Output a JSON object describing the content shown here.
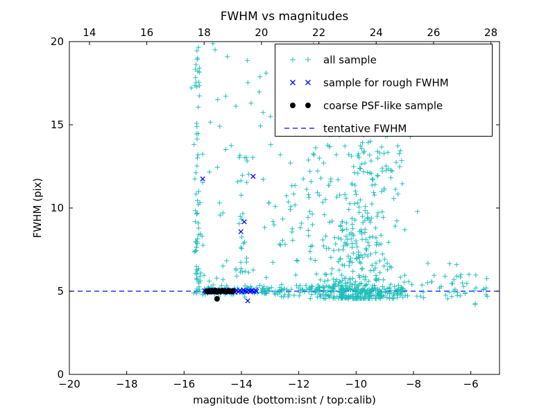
{
  "figure": {
    "background": "#ffffff"
  },
  "chart_data": {
    "type": "scatter",
    "title": "FWHM vs magnitudes",
    "xlabel": "magnitude (bottom:isnt / top:calib)",
    "ylabel": "FWHM (pix)",
    "grid": false,
    "legend_position": "upper right",
    "x_axis_bottom": {
      "lim": [
        -20,
        -5
      ],
      "ticks": [
        -20,
        -18,
        -16,
        -14,
        -12,
        -10,
        -8,
        -6
      ]
    },
    "x_axis_top": {
      "lim": [
        13.3,
        28.3
      ],
      "ticks": [
        14,
        16,
        18,
        20,
        22,
        24,
        26,
        28
      ]
    },
    "y_axis": {
      "lim": [
        0,
        20
      ],
      "ticks": [
        0,
        5,
        10,
        15,
        20
      ]
    },
    "tentative_fwhm": 5.0,
    "series": [
      {
        "name": "all sample",
        "marker": "+",
        "color": "#1fbfba",
        "clusters": [
          {
            "n": 80,
            "x": {
              "d": "gauss",
              "m": -15.52,
              "s": 0.07
            },
            "y": {
              "d": "pow",
              "min": 4.8,
              "max": 21,
              "k": 1.5
            }
          },
          {
            "n": 26,
            "x": {
              "d": "gauss",
              "m": -13.97,
              "s": 0.1
            },
            "y": {
              "d": "pow",
              "min": 5.0,
              "max": 13.5,
              "k": 1.7
            }
          },
          {
            "n": 75,
            "x": {
              "d": "uni",
              "min": -15.45,
              "max": -12.1
            },
            "y": {
              "d": "pow",
              "min": 5.1,
              "max": 20,
              "k": 1.6
            }
          },
          {
            "n": 40,
            "x": {
              "d": "uni",
              "min": -12.3,
              "max": -10.9
            },
            "y": {
              "d": "pow",
              "min": 5.2,
              "max": 14,
              "k": 1.7
            }
          },
          {
            "n": 430,
            "x": {
              "d": "gauss",
              "m": -9.95,
              "s": 0.75
            },
            "y": {
              "d": "pow",
              "min": 4.55,
              "max": 14.5,
              "k": 2.4
            }
          },
          {
            "n": 240,
            "x": {
              "d": "uni",
              "min": -15.35,
              "max": -8.3
            },
            "y": {
              "d": "gauss",
              "m": 5.02,
              "s": 0.16
            }
          },
          {
            "n": 48,
            "x": {
              "d": "uni",
              "min": -8.4,
              "max": -5.4
            },
            "y": {
              "d": "gauss",
              "m": 5.15,
              "s": 0.5
            }
          },
          {
            "n": 14,
            "x": {
              "d": "uni",
              "min": -12.6,
              "max": -9.6
            },
            "y": {
              "d": "uni",
              "min": 16,
              "max": 20
            }
          },
          {
            "n": 8,
            "x": {
              "d": "gauss",
              "m": -10.3,
              "s": 0.6
            },
            "y": {
              "d": "uni",
              "min": 13.5,
              "max": 16
            }
          }
        ],
        "extra_points": [
          [
            -5.85,
            4.2
          ],
          [
            -6.5,
            6.6
          ],
          [
            -6.9,
            5.9
          ]
        ]
      },
      {
        "name": "sample for rough FWHM",
        "marker": "x",
        "color": "#0000ff",
        "points": [
          [
            -15.35,
            11.75
          ],
          [
            -13.59,
            11.9
          ],
          [
            -13.9,
            9.17
          ],
          [
            -14.02,
            8.58
          ],
          [
            -13.78,
            4.42
          ],
          [
            -15.28,
            5.02
          ],
          [
            -15.22,
            4.97
          ],
          [
            -15.18,
            5.05
          ],
          [
            -15.12,
            4.93
          ],
          [
            -15.08,
            5.08
          ],
          [
            -15.02,
            5.0
          ],
          [
            -14.97,
            4.95
          ],
          [
            -14.93,
            5.06
          ],
          [
            -14.88,
            4.98
          ],
          [
            -14.84,
            5.03
          ],
          [
            -14.79,
            4.92
          ],
          [
            -14.75,
            5.07
          ],
          [
            -14.7,
            5.01
          ],
          [
            -14.66,
            4.96
          ],
          [
            -14.61,
            5.04
          ],
          [
            -14.57,
            4.99
          ],
          [
            -14.52,
            5.08
          ],
          [
            -14.48,
            4.94
          ],
          [
            -14.43,
            5.02
          ],
          [
            -14.38,
            4.97
          ],
          [
            -14.33,
            5.05
          ],
          [
            -14.28,
            5.0
          ],
          [
            -14.22,
            4.93
          ],
          [
            -14.17,
            5.06
          ],
          [
            -14.11,
            4.98
          ],
          [
            -14.05,
            5.03
          ],
          [
            -13.99,
            4.95
          ],
          [
            -13.93,
            5.07
          ],
          [
            -13.87,
            5.0
          ],
          [
            -13.81,
            4.96
          ],
          [
            -13.75,
            5.04
          ],
          [
            -13.69,
            4.99
          ],
          [
            -13.63,
            5.02
          ],
          [
            -13.57,
            4.97
          ],
          [
            -13.51,
            5.05
          ],
          [
            -13.47,
            5.0
          ]
        ]
      },
      {
        "name": "coarse PSF-like sample",
        "marker": "circle",
        "color": "#000000",
        "points": [
          [
            -15.2,
            5.0
          ],
          [
            -15.12,
            4.97
          ],
          [
            -15.05,
            5.03
          ],
          [
            -14.98,
            4.99
          ],
          [
            -14.92,
            5.04
          ],
          [
            -14.85,
            4.96
          ],
          [
            -14.78,
            5.01
          ],
          [
            -14.72,
            4.98
          ],
          [
            -14.66,
            5.03
          ],
          [
            -14.6,
            5.0
          ],
          [
            -14.52,
            4.97
          ],
          [
            -14.45,
            5.02
          ],
          [
            -14.36,
            4.99
          ],
          [
            -14.3,
            5.01
          ],
          [
            -14.85,
            4.54
          ]
        ]
      },
      {
        "name": "tentative FWHM",
        "type": "hline",
        "linestyle": "dashed",
        "color": "#0000ff",
        "y": 5.0
      }
    ]
  }
}
